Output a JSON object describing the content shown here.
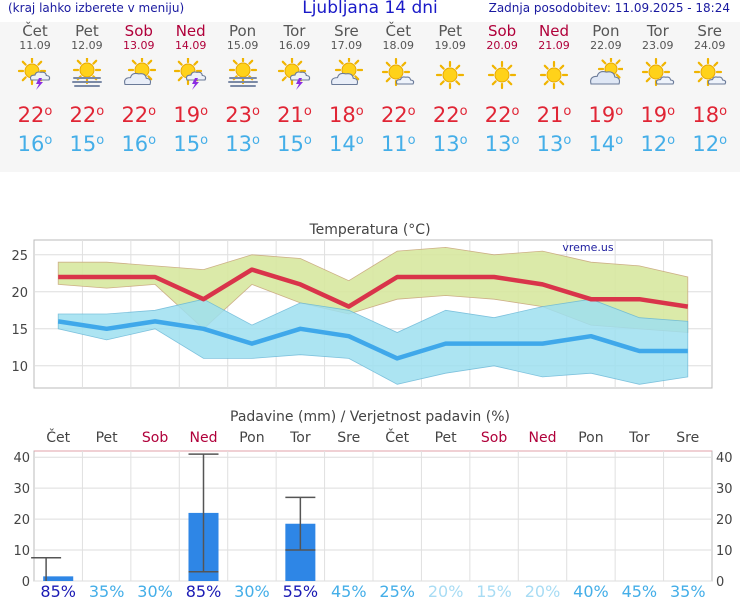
{
  "header": {
    "menu_hint": "(kraj lahko izberete v meniju)",
    "title": "Ljubljana 14 dni",
    "updated": "Zadnja posodobitev: 11.09.2025 - 18:24"
  },
  "days": [
    {
      "name": "Čet",
      "date": "11.09",
      "weekend": false,
      "icon": "sun-cloud-storm-icon",
      "tmax": "22",
      "tmin": "16"
    },
    {
      "name": "Pet",
      "date": "12.09",
      "weekend": false,
      "icon": "sun-fog-icon",
      "tmax": "22",
      "tmin": "15"
    },
    {
      "name": "Sob",
      "date": "13.09",
      "weekend": true,
      "icon": "sun-cloud-icon",
      "tmax": "22",
      "tmin": "16"
    },
    {
      "name": "Ned",
      "date": "14.09",
      "weekend": true,
      "icon": "sun-cloud-storm-icon",
      "tmax": "19",
      "tmin": "15"
    },
    {
      "name": "Pon",
      "date": "15.09",
      "weekend": false,
      "icon": "sun-fog-icon",
      "tmax": "23",
      "tmin": "13"
    },
    {
      "name": "Tor",
      "date": "16.09",
      "weekend": false,
      "icon": "sun-cloud-storm-icon",
      "tmax": "21",
      "tmin": "15"
    },
    {
      "name": "Sre",
      "date": "17.09",
      "weekend": false,
      "icon": "sun-cloud-icon",
      "tmax": "18",
      "tmin": "14"
    },
    {
      "name": "Čet",
      "date": "18.09",
      "weekend": false,
      "icon": "sun-small-cloud-icon",
      "tmax": "22",
      "tmin": "11"
    },
    {
      "name": "Pet",
      "date": "19.09",
      "weekend": false,
      "icon": "sun-icon",
      "tmax": "22",
      "tmin": "13"
    },
    {
      "name": "Sob",
      "date": "20.09",
      "weekend": true,
      "icon": "sun-icon",
      "tmax": "22",
      "tmin": "13"
    },
    {
      "name": "Ned",
      "date": "21.09",
      "weekend": true,
      "icon": "sun-icon",
      "tmax": "21",
      "tmin": "13"
    },
    {
      "name": "Pon",
      "date": "22.09",
      "weekend": false,
      "icon": "cloud-sun-icon",
      "tmax": "19",
      "tmin": "14"
    },
    {
      "name": "Tor",
      "date": "23.09",
      "weekend": false,
      "icon": "sun-small-cloud-icon",
      "tmax": "19",
      "tmin": "12"
    },
    {
      "name": "Sre",
      "date": "24.09",
      "weekend": false,
      "icon": "sun-small-cloud-icon",
      "tmax": "18",
      "tmin": "12"
    }
  ],
  "colors": {
    "max_line": "#d9344a",
    "min_line": "#3fa8ea",
    "max_band": "#d8e8a0",
    "min_band": "#9ee0f0",
    "overlap_band": "#8fd28a",
    "weekend": "#b0003a",
    "bar": "#2e86e6",
    "pct_strong": "#1a1ab4",
    "pct_medium": "#44aee8",
    "pct_weak": "#a8dcf4"
  },
  "chart_data": [
    {
      "type": "line",
      "title": "Temperatura (°C)",
      "watermark": "vreme.us",
      "x": [
        "Čet",
        "Pet",
        "Sob",
        "Ned",
        "Pon",
        "Tor",
        "Sre",
        "Čet",
        "Pet",
        "Sob",
        "Ned",
        "Pon",
        "Tor",
        "Sre"
      ],
      "ylim": [
        7,
        27
      ],
      "yticks": [
        10,
        15,
        20,
        25
      ],
      "grid": true,
      "series": [
        {
          "role": "max",
          "values": [
            22,
            22,
            22,
            19,
            23,
            21,
            18,
            22,
            22,
            22,
            21,
            19,
            19,
            18
          ],
          "band_high": [
            24,
            24,
            23.5,
            23,
            25,
            24.5,
            21.5,
            25.5,
            26,
            25,
            25.5,
            24,
            23.5,
            22
          ],
          "band_low": [
            21,
            20.5,
            21,
            15,
            21,
            18.5,
            17,
            19,
            19.5,
            19,
            18,
            15.5,
            15,
            14.5
          ]
        },
        {
          "role": "min",
          "values": [
            16,
            15,
            16,
            15,
            13,
            15,
            14,
            11,
            13,
            13,
            13,
            14,
            12,
            12
          ],
          "band_high": [
            17,
            17,
            17.5,
            19,
            15.5,
            18.5,
            17.5,
            14.5,
            17.5,
            16.5,
            18,
            19,
            16.5,
            16
          ],
          "band_low": [
            15,
            13.5,
            15,
            11,
            11,
            11.5,
            11,
            7.5,
            9,
            10,
            8.5,
            9,
            7.5,
            8.5
          ]
        }
      ]
    },
    {
      "type": "bar",
      "title": "Padavine (mm) / Verjetnost padavin (%)",
      "categories": [
        "Čet",
        "Pet",
        "Sob",
        "Ned",
        "Pon",
        "Tor",
        "Sre",
        "Čet",
        "Pet",
        "Sob",
        "Ned",
        "Pon",
        "Tor",
        "Sre"
      ],
      "ylim": [
        0,
        42
      ],
      "yticks": [
        0,
        10,
        20,
        30,
        40
      ],
      "grid": true,
      "values": [
        1.5,
        0,
        0,
        22,
        0,
        18.5,
        0,
        0,
        0,
        0,
        0,
        0,
        0,
        0
      ],
      "error_high": [
        7.5,
        null,
        null,
        41,
        null,
        27,
        null,
        null,
        null,
        null,
        null,
        null,
        null,
        null
      ],
      "error_low": [
        0,
        null,
        null,
        3,
        null,
        10,
        null,
        null,
        null,
        null,
        null,
        null,
        null,
        null
      ],
      "probability": [
        "85%",
        "35%",
        "30%",
        "85%",
        "30%",
        "55%",
        "45%",
        "25%",
        "20%",
        "15%",
        "20%",
        "40%",
        "45%",
        "35%"
      ],
      "probability_level": [
        "strong",
        "medium",
        "medium",
        "strong",
        "medium",
        "strong",
        "medium",
        "medium",
        "weak",
        "weak",
        "weak",
        "medium",
        "medium",
        "medium"
      ]
    }
  ]
}
